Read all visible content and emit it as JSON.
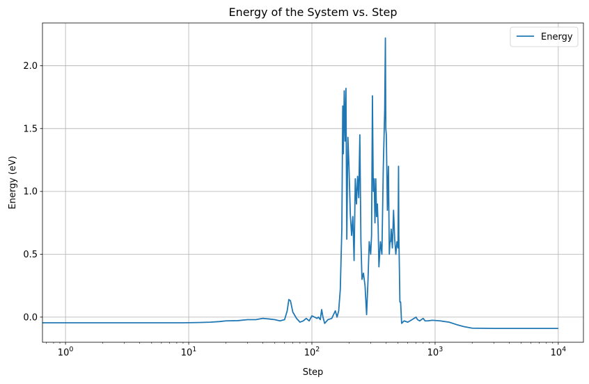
{
  "chart_data": {
    "type": "line",
    "title": "Energy of the System vs. Step",
    "xlabel": "Step",
    "ylabel": "Energy (eV)",
    "xscale": "log",
    "xlim": [
      0.65,
      16000
    ],
    "ylim": [
      -0.2,
      2.34
    ],
    "grid": true,
    "legend_position": "top-right",
    "x_ticks": [
      {
        "value": 1,
        "base": "10",
        "exp": "0"
      },
      {
        "value": 10,
        "base": "10",
        "exp": "1"
      },
      {
        "value": 100,
        "base": "10",
        "exp": "2"
      },
      {
        "value": 1000,
        "base": "10",
        "exp": "3"
      },
      {
        "value": 10000,
        "base": "10",
        "exp": "4"
      }
    ],
    "y_ticks": [
      {
        "value": 0.0,
        "label": "0.0"
      },
      {
        "value": 0.5,
        "label": "0.5"
      },
      {
        "value": 1.0,
        "label": "1.0"
      },
      {
        "value": 1.5,
        "label": "1.5"
      },
      {
        "value": 2.0,
        "label": "2.0"
      }
    ],
    "series": [
      {
        "name": "Energy",
        "color": "#1f77b4",
        "points": [
          [
            0.65,
            -0.045
          ],
          [
            1,
            -0.045
          ],
          [
            3,
            -0.045
          ],
          [
            9,
            -0.045
          ],
          [
            12,
            -0.043
          ],
          [
            15,
            -0.04
          ],
          [
            18,
            -0.035
          ],
          [
            20,
            -0.03
          ],
          [
            25,
            -0.028
          ],
          [
            30,
            -0.02
          ],
          [
            35,
            -0.02
          ],
          [
            40,
            -0.01
          ],
          [
            45,
            -0.015
          ],
          [
            50,
            -0.02
          ],
          [
            55,
            -0.03
          ],
          [
            60,
            -0.02
          ],
          [
            63,
            0.05
          ],
          [
            65,
            0.14
          ],
          [
            67,
            0.13
          ],
          [
            70,
            0.04
          ],
          [
            72,
            0.02
          ],
          [
            75,
            -0.01
          ],
          [
            80,
            -0.04
          ],
          [
            85,
            -0.03
          ],
          [
            90,
            -0.01
          ],
          [
            95,
            -0.03
          ],
          [
            100,
            0.01
          ],
          [
            105,
            0.0
          ],
          [
            110,
            -0.01
          ],
          [
            113,
            0.0
          ],
          [
            117,
            -0.02
          ],
          [
            120,
            0.06
          ],
          [
            123,
            0.0
          ],
          [
            127,
            -0.05
          ],
          [
            135,
            -0.02
          ],
          [
            145,
            -0.01
          ],
          [
            155,
            0.05
          ],
          [
            160,
            0.0
          ],
          [
            165,
            0.05
          ],
          [
            170,
            0.22
          ],
          [
            175,
            0.7
          ],
          [
            178,
            1.68
          ],
          [
            180,
            1.3
          ],
          [
            183,
            1.8
          ],
          [
            186,
            1.4
          ],
          [
            189,
            1.82
          ],
          [
            192,
            0.62
          ],
          [
            196,
            1.43
          ],
          [
            200,
            1.2
          ],
          [
            205,
            0.82
          ],
          [
            210,
            0.65
          ],
          [
            215,
            0.8
          ],
          [
            220,
            0.45
          ],
          [
            225,
            1.1
          ],
          [
            230,
            0.9
          ],
          [
            235,
            1.12
          ],
          [
            240,
            0.95
          ],
          [
            245,
            1.45
          ],
          [
            250,
            0.6
          ],
          [
            255,
            0.3
          ],
          [
            262,
            0.35
          ],
          [
            270,
            0.25
          ],
          [
            278,
            0.02
          ],
          [
            285,
            0.28
          ],
          [
            292,
            0.6
          ],
          [
            300,
            0.5
          ],
          [
            305,
            0.65
          ],
          [
            310,
            1.76
          ],
          [
            315,
            1.0
          ],
          [
            320,
            1.1
          ],
          [
            325,
            0.75
          ],
          [
            330,
            1.1
          ],
          [
            335,
            0.8
          ],
          [
            340,
            0.9
          ],
          [
            345,
            0.72
          ],
          [
            350,
            0.4
          ],
          [
            360,
            0.6
          ],
          [
            370,
            0.5
          ],
          [
            380,
            1.2
          ],
          [
            390,
            1.65
          ],
          [
            395,
            2.22
          ],
          [
            398,
            1.5
          ],
          [
            402,
            1.45
          ],
          [
            410,
            0.85
          ],
          [
            418,
            1.2
          ],
          [
            425,
            0.5
          ],
          [
            430,
            0.6
          ],
          [
            435,
            0.6
          ],
          [
            440,
            0.7
          ],
          [
            450,
            0.55
          ],
          [
            460,
            0.85
          ],
          [
            470,
            0.62
          ],
          [
            480,
            0.5
          ],
          [
            490,
            0.6
          ],
          [
            500,
            0.55
          ],
          [
            505,
            1.2
          ],
          [
            508,
            0.65
          ],
          [
            512,
            0.45
          ],
          [
            518,
            0.12
          ],
          [
            525,
            0.12
          ],
          [
            535,
            -0.05
          ],
          [
            560,
            -0.03
          ],
          [
            600,
            -0.04
          ],
          [
            650,
            -0.02
          ],
          [
            700,
            0.0
          ],
          [
            720,
            -0.02
          ],
          [
            750,
            -0.03
          ],
          [
            800,
            -0.01
          ],
          [
            830,
            -0.03
          ],
          [
            870,
            -0.03
          ],
          [
            950,
            -0.025
          ],
          [
            1100,
            -0.03
          ],
          [
            1300,
            -0.04
          ],
          [
            1500,
            -0.06
          ],
          [
            1700,
            -0.075
          ],
          [
            2000,
            -0.088
          ],
          [
            3000,
            -0.09
          ],
          [
            5000,
            -0.09
          ],
          [
            7000,
            -0.09
          ],
          [
            10000,
            -0.09
          ]
        ]
      }
    ]
  }
}
